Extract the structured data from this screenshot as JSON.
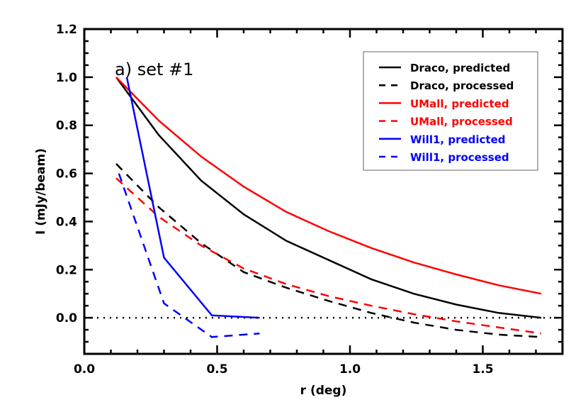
{
  "chart_data": {
    "type": "line",
    "title": "",
    "annotation": "a)  set #1",
    "xlabel": "r (deg)",
    "ylabel": "I (mJy/beam)",
    "xlim": [
      0.0,
      1.8
    ],
    "ylim": [
      -0.15,
      1.2
    ],
    "xticks": [
      0.0,
      0.5,
      1.0,
      1.5
    ],
    "xtick_labels": [
      "0.0",
      "0.5",
      "1.0",
      "1.5"
    ],
    "yticks": [
      0.0,
      0.2,
      0.4,
      0.6,
      0.8,
      1.0,
      1.2
    ],
    "ytick_labels": [
      "0.0",
      "0.2",
      "0.4",
      "0.6",
      "0.8",
      "1.0",
      "1.2"
    ],
    "grid": false,
    "reference_line": {
      "y": 0.0,
      "style": "dotted",
      "color": "#000000"
    },
    "legend_position": "upper right",
    "series": [
      {
        "name": "Draco, predicted",
        "color": "#000000",
        "dash": "solid",
        "x": [
          0.12,
          0.28,
          0.44,
          0.6,
          0.76,
          0.92,
          1.08,
          1.24,
          1.4,
          1.56,
          1.72
        ],
        "y": [
          1.0,
          0.76,
          0.57,
          0.43,
          0.32,
          0.24,
          0.16,
          0.1,
          0.055,
          0.02,
          0.0
        ]
      },
      {
        "name": "Draco, processed",
        "color": "#000000",
        "dash": "dashed",
        "x": [
          0.12,
          0.28,
          0.44,
          0.6,
          0.76,
          0.92,
          1.08,
          1.24,
          1.4,
          1.56,
          1.72
        ],
        "y": [
          0.64,
          0.46,
          0.31,
          0.19,
          0.125,
          0.07,
          0.02,
          -0.02,
          -0.05,
          -0.07,
          -0.08
        ]
      },
      {
        "name": "UMall, predicted",
        "color": "#ff0000",
        "dash": "solid",
        "x": [
          0.12,
          0.28,
          0.44,
          0.6,
          0.76,
          0.92,
          1.08,
          1.24,
          1.4,
          1.56,
          1.72
        ],
        "y": [
          1.0,
          0.82,
          0.67,
          0.545,
          0.44,
          0.36,
          0.29,
          0.23,
          0.18,
          0.135,
          0.1
        ]
      },
      {
        "name": "UMall, processed",
        "color": "#ff0000",
        "dash": "dashed",
        "x": [
          0.12,
          0.28,
          0.44,
          0.6,
          0.76,
          0.92,
          1.08,
          1.24,
          1.4,
          1.56,
          1.72
        ],
        "y": [
          0.58,
          0.42,
          0.3,
          0.205,
          0.14,
          0.09,
          0.05,
          0.015,
          -0.015,
          -0.04,
          -0.065
        ]
      },
      {
        "name": "Will1, predicted",
        "color": "#0000ff",
        "dash": "solid",
        "x": [
          0.16,
          0.3,
          0.48,
          0.66
        ],
        "y": [
          1.0,
          0.25,
          0.01,
          0.0
        ]
      },
      {
        "name": "Will1, processed",
        "color": "#0000ff",
        "dash": "dashed",
        "x": [
          0.13,
          0.3,
          0.48,
          0.66
        ],
        "y": [
          0.6,
          0.06,
          -0.08,
          -0.065
        ]
      }
    ]
  },
  "legend": {
    "items": [
      {
        "label": "Draco, predicted",
        "color": "#000000",
        "dash": "solid"
      },
      {
        "label": "Draco, processed",
        "color": "#000000",
        "dash": "dashed"
      },
      {
        "label": "UMall, predicted",
        "color": "#ff0000",
        "dash": "solid"
      },
      {
        "label": "UMall, processed",
        "color": "#ff0000",
        "dash": "dashed"
      },
      {
        "label": "Will1, predicted",
        "color": "#0000ff",
        "dash": "solid"
      },
      {
        "label": "Will1, processed",
        "color": "#0000ff",
        "dash": "dashed"
      }
    ]
  }
}
